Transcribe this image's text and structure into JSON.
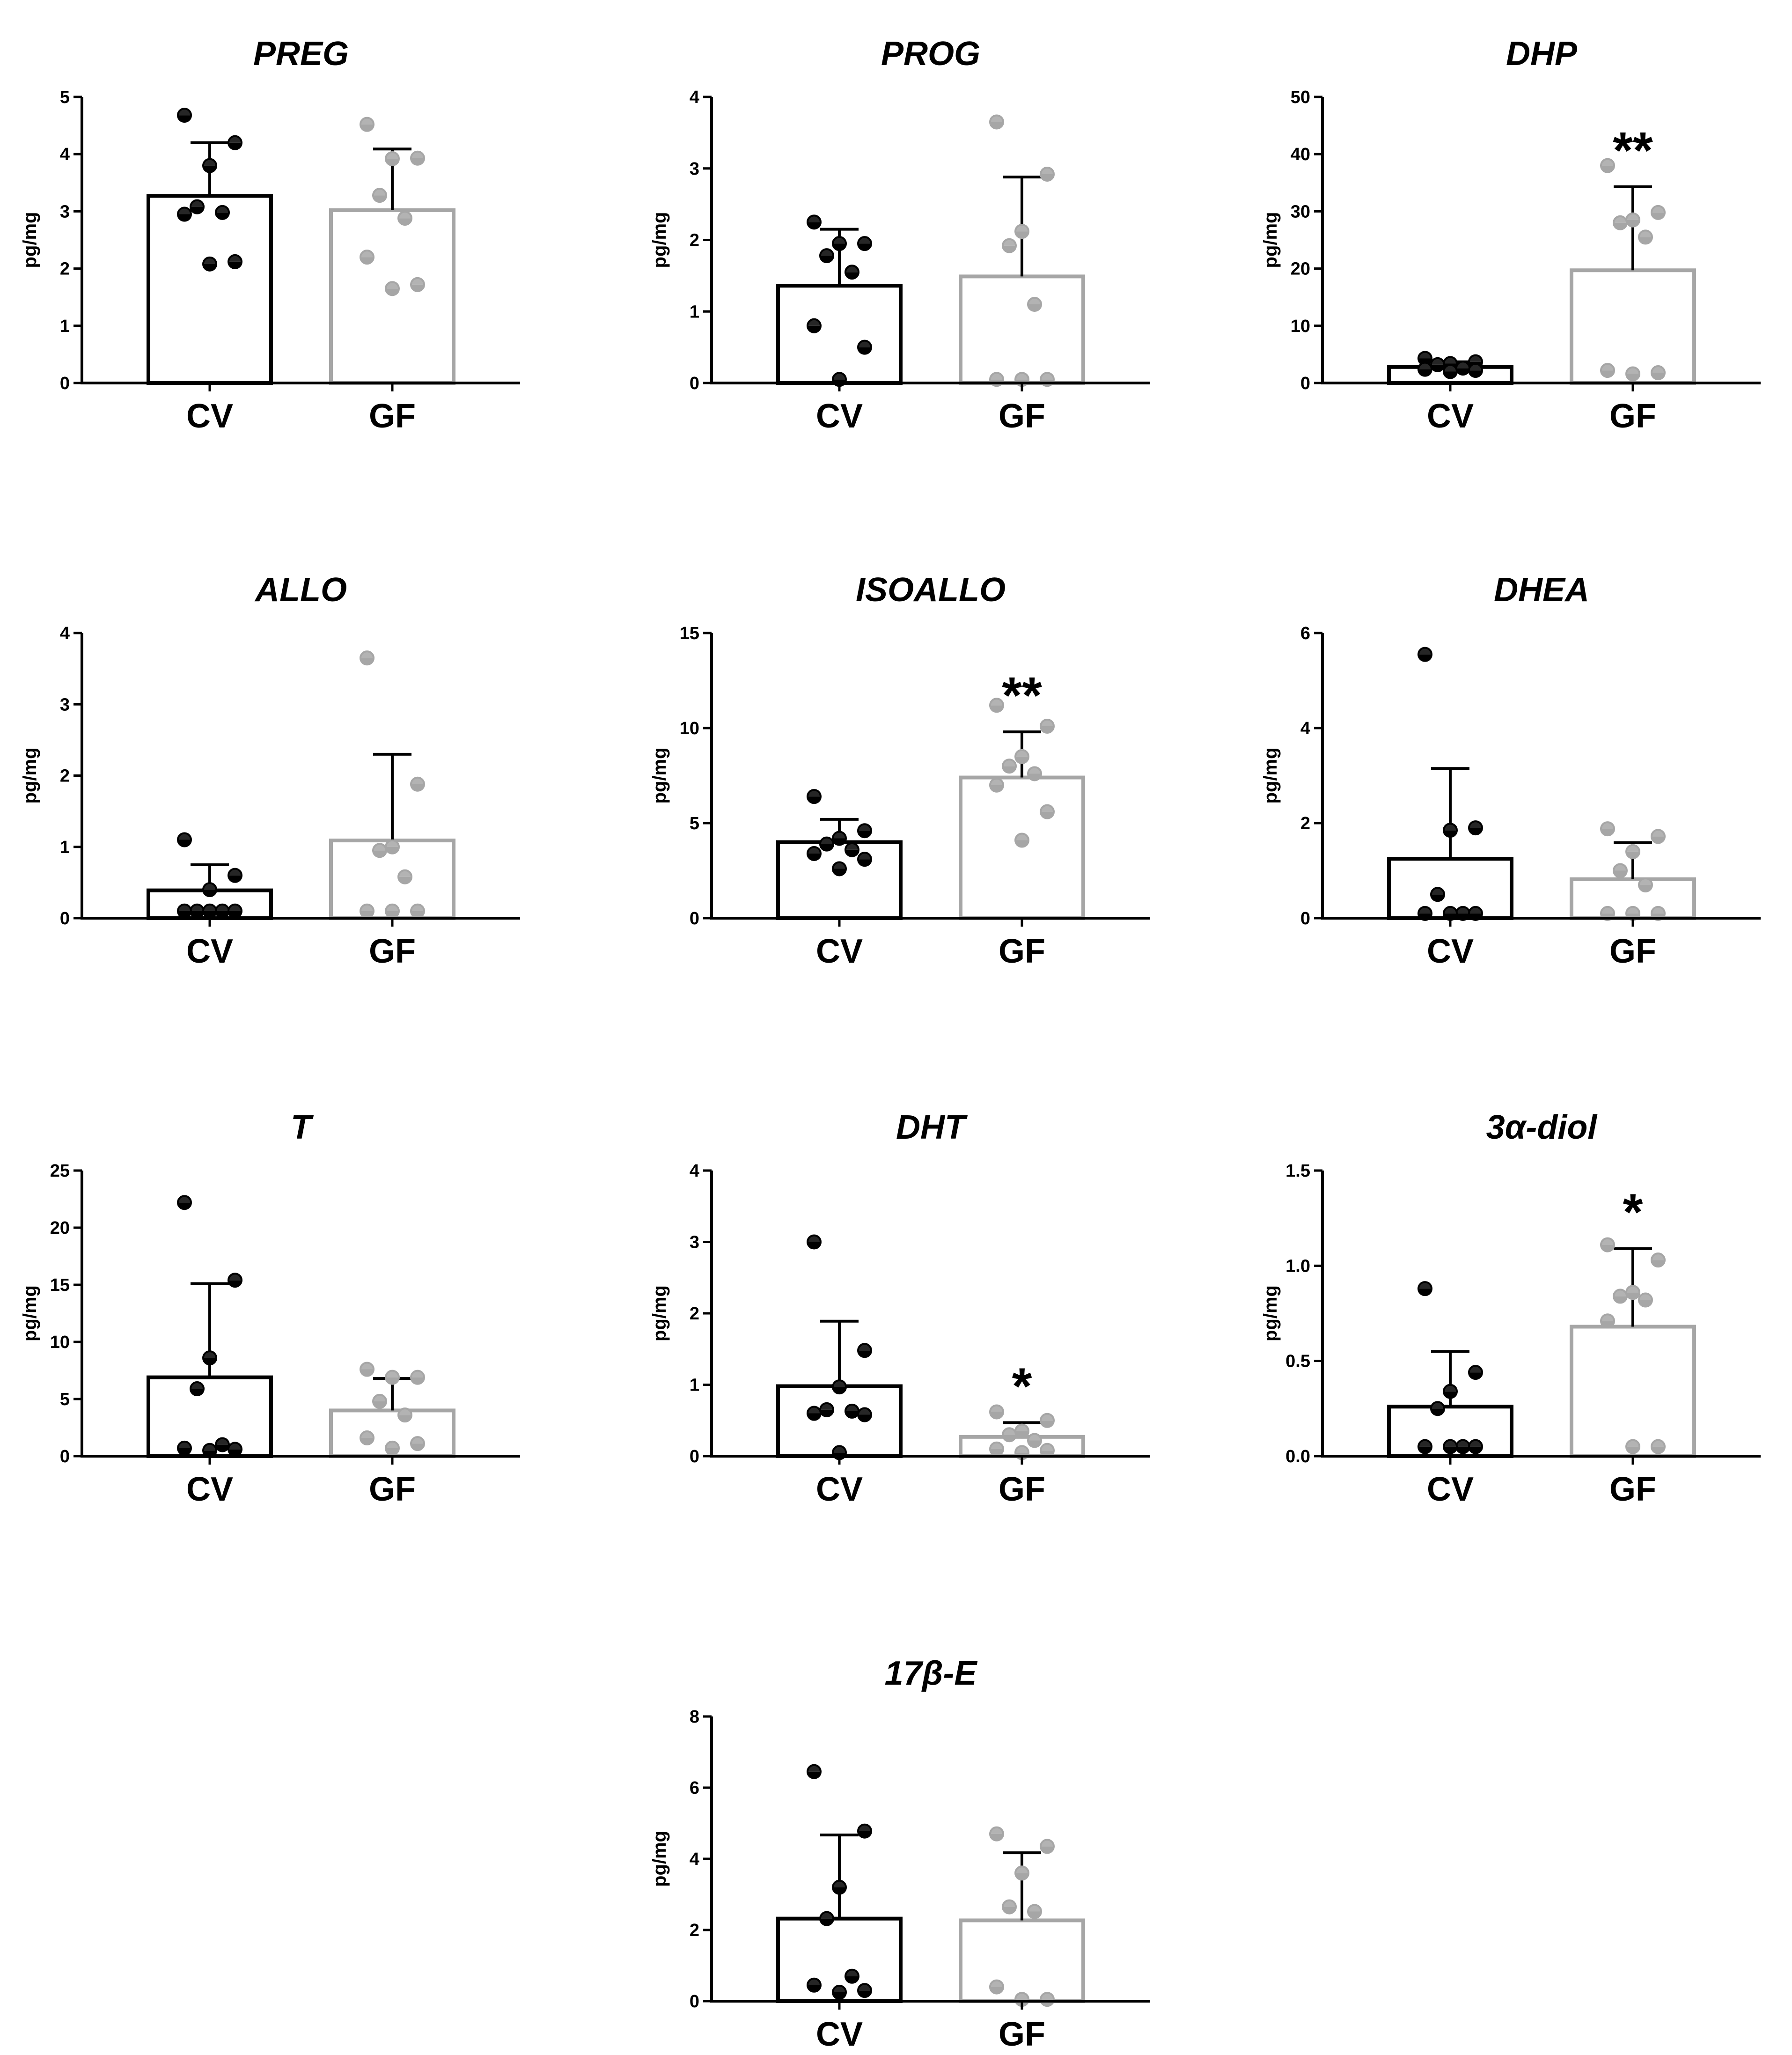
{
  "figure": {
    "ylabel": "pg/mg",
    "groups": [
      "CV",
      "GF"
    ]
  },
  "colors": {
    "CV": "#000000",
    "GF": "#a6a6a6",
    "axis": "#000000"
  },
  "chart_data": [
    {
      "type": "bar",
      "title": "PREG",
      "ylabel": "pg/mg",
      "categories": [
        "CV",
        "GF"
      ],
      "ylim": [
        0,
        5
      ],
      "ticks": [
        "0",
        "1",
        "2",
        "3",
        "4",
        "5"
      ],
      "values": [
        3.27,
        3.02
      ],
      "sd": [
        0.93,
        1.07
      ],
      "significance": [
        "",
        ""
      ],
      "points": [
        [
          4.68,
          4.2,
          3.8,
          3.08,
          2.98,
          2.95,
          2.12,
          2.08
        ],
        [
          4.52,
          3.92,
          3.93,
          3.28,
          2.88,
          2.2,
          1.72,
          1.65
        ]
      ]
    },
    {
      "type": "bar",
      "title": "PROG",
      "ylabel": "pg/mg",
      "categories": [
        "CV",
        "GF"
      ],
      "ylim": [
        0,
        4
      ],
      "ticks": [
        "0",
        "1",
        "2",
        "3",
        "4"
      ],
      "values": [
        1.36,
        1.49
      ],
      "sd": [
        0.79,
        1.39
      ],
      "significance": [
        "",
        ""
      ],
      "points": [
        [
          2.25,
          1.95,
          1.95,
          1.78,
          1.55,
          0.8,
          0.5,
          0.05
        ],
        [
          3.65,
          2.92,
          2.12,
          1.92,
          1.1,
          0.05,
          0.05,
          0.05
        ]
      ]
    },
    {
      "type": "bar",
      "title": "DHP",
      "ylabel": "pg/mg",
      "categories": [
        "CV",
        "GF"
      ],
      "ylim": [
        0,
        50
      ],
      "ticks": [
        "0",
        "10",
        "20",
        "30",
        "40",
        "50"
      ],
      "values": [
        2.8,
        19.7
      ],
      "sd": [
        0.9,
        14.6
      ],
      "significance": [
        "",
        "**"
      ],
      "points": [
        [
          4.3,
          3.7,
          3.4,
          3.2,
          2.6,
          2.4,
          2.2,
          2.0
        ],
        [
          38.0,
          29.8,
          28.5,
          28.0,
          25.5,
          2.2,
          1.8,
          1.6
        ]
      ]
    },
    {
      "type": "bar",
      "title": "ALLO",
      "ylabel": "pg/mg",
      "categories": [
        "CV",
        "GF"
      ],
      "ylim": [
        0,
        4
      ],
      "ticks": [
        "0",
        "1",
        "2",
        "3",
        "4"
      ],
      "values": [
        0.39,
        1.09
      ],
      "sd": [
        0.36,
        1.21
      ],
      "significance": [
        "",
        ""
      ],
      "points": [
        [
          1.1,
          0.6,
          0.4,
          0.1,
          0.1,
          0.1,
          0.1,
          0.1
        ],
        [
          3.65,
          1.88,
          1.0,
          0.95,
          0.58,
          0.1,
          0.1,
          0.1
        ]
      ]
    },
    {
      "type": "bar",
      "title": "ISOALLO",
      "ylabel": "pg/mg",
      "categories": [
        "CV",
        "GF"
      ],
      "ylim": [
        0,
        15
      ],
      "ticks": [
        "0",
        "5",
        "10",
        "15"
      ],
      "values": [
        4.0,
        7.4
      ],
      "sd": [
        1.2,
        2.4
      ],
      "significance": [
        "",
        "**"
      ],
      "points": [
        [
          6.4,
          4.6,
          4.2,
          3.9,
          3.6,
          3.4,
          3.1,
          2.6
        ],
        [
          11.2,
          10.1,
          8.5,
          8.0,
          7.6,
          7.0,
          5.6,
          4.1
        ]
      ]
    },
    {
      "type": "bar",
      "title": "DHEA",
      "ylabel": "pg/mg",
      "categories": [
        "CV",
        "GF"
      ],
      "ylim": [
        0,
        6
      ],
      "ticks": [
        "0",
        "2",
        "4",
        "6"
      ],
      "values": [
        1.25,
        0.82
      ],
      "sd": [
        1.9,
        0.77
      ],
      "significance": [
        "",
        ""
      ],
      "points": [
        [
          5.55,
          1.9,
          1.85,
          0.5,
          0.1,
          0.1,
          0.1,
          0.1
        ],
        [
          1.88,
          1.72,
          1.4,
          1.0,
          0.7,
          0.1,
          0.1,
          0.1
        ]
      ]
    },
    {
      "type": "bar",
      "title": "T",
      "ylabel": "pg/mg",
      "categories": [
        "CV",
        "GF"
      ],
      "ylim": [
        0,
        25
      ],
      "ticks": [
        "0",
        "5",
        "10",
        "15",
        "20",
        "25"
      ],
      "values": [
        6.9,
        4.0
      ],
      "sd": [
        8.2,
        2.8
      ],
      "significance": [
        "",
        ""
      ],
      "points": [
        [
          22.2,
          15.4,
          8.6,
          5.9,
          1.0,
          0.7,
          0.6,
          0.5
        ],
        [
          7.6,
          6.9,
          6.9,
          4.8,
          3.6,
          1.6,
          1.1,
          0.7
        ]
      ]
    },
    {
      "type": "bar",
      "title": "DHT",
      "ylabel": "pg/mg",
      "categories": [
        "CV",
        "GF"
      ],
      "ylim": [
        0,
        4
      ],
      "ticks": [
        "0",
        "1",
        "2",
        "3",
        "4"
      ],
      "values": [
        0.98,
        0.27
      ],
      "sd": [
        0.91,
        0.2
      ],
      "significance": [
        "",
        "*"
      ],
      "points": [
        [
          3.0,
          1.48,
          0.97,
          0.65,
          0.63,
          0.6,
          0.58,
          0.05
        ],
        [
          0.62,
          0.5,
          0.35,
          0.3,
          0.22,
          0.1,
          0.08,
          0.05
        ]
      ]
    },
    {
      "type": "bar",
      "title": "3α-diol",
      "ylabel": "pg/mg",
      "categories": [
        "CV",
        "GF"
      ],
      "ylim": [
        0,
        1.5
      ],
      "ticks": [
        "0.0",
        "0.5",
        "1.0",
        "1.5"
      ],
      "values": [
        0.26,
        0.68
      ],
      "sd": [
        0.29,
        0.41
      ],
      "significance": [
        "",
        "*"
      ],
      "points": [
        [
          0.88,
          0.44,
          0.34,
          0.25,
          0.05,
          0.05,
          0.05,
          0.05
        ],
        [
          1.11,
          1.03,
          0.86,
          0.84,
          0.82,
          0.71,
          0.05,
          0.05
        ]
      ]
    },
    {
      "type": "bar",
      "title": "17β-E",
      "ylabel": "pg/mg",
      "categories": [
        "CV",
        "GF"
      ],
      "ylim": [
        0,
        8
      ],
      "ticks": [
        "0",
        "2",
        "4",
        "6",
        "8"
      ],
      "values": [
        2.32,
        2.27
      ],
      "sd": [
        2.35,
        1.9
      ],
      "significance": [
        "",
        ""
      ],
      "points": [
        [
          6.45,
          4.78,
          3.2,
          2.32,
          0.7,
          0.45,
          0.3,
          0.25
        ],
        [
          4.7,
          4.35,
          3.6,
          2.65,
          2.52,
          0.4,
          0.05,
          0.05
        ]
      ]
    }
  ]
}
